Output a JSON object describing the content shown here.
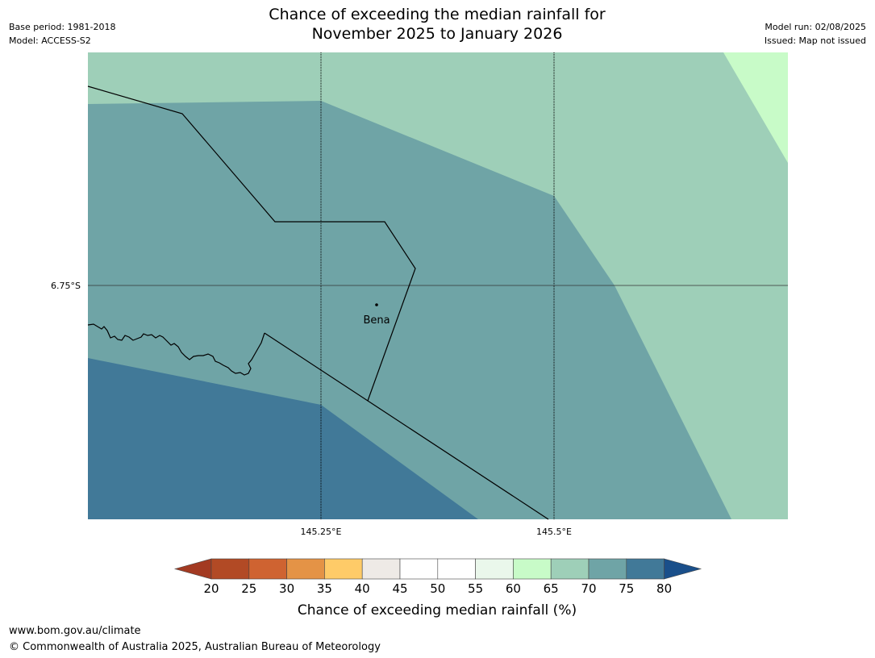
{
  "header": {
    "title_line1": "Chance of exceeding the median rainfall for",
    "title_line2": "November 2025 to January 2026",
    "base_period": "Base period: 1981-2018",
    "model": "Model: ACCESS-S2",
    "model_run": "Model run: 02/08/2025",
    "issued": "Issued: Map not issued"
  },
  "map": {
    "place_label": "Bena",
    "lat_label": "6.75°S",
    "lon_labels": [
      "145.25°E",
      "145.5°E"
    ],
    "colors": {
      "band_65_70": "#9ecfb8",
      "band_70_75": "#6fa4a6",
      "band_75_80": "#417998",
      "band_60_65": "#c8fbc8"
    }
  },
  "legend": {
    "ticks": [
      "20",
      "25",
      "30",
      "35",
      "40",
      "45",
      "50",
      "55",
      "60",
      "65",
      "70",
      "75",
      "80"
    ],
    "colors": [
      "#a33a22",
      "#b24a25",
      "#cf6331",
      "#e49346",
      "#fecb68",
      "#eeeae6",
      "#ffffff",
      "#ffffff",
      "#eaf7eb",
      "#c8fbc8",
      "#9ecfb8",
      "#6fa4a6",
      "#417998",
      "#1a4f8a"
    ],
    "label": "Chance of exceeding median rainfall (%)"
  },
  "footer": {
    "url": "www.bom.gov.au/climate",
    "copyright": "© Commonwealth of Australia 2025, Australian Bureau of Meteorology"
  }
}
